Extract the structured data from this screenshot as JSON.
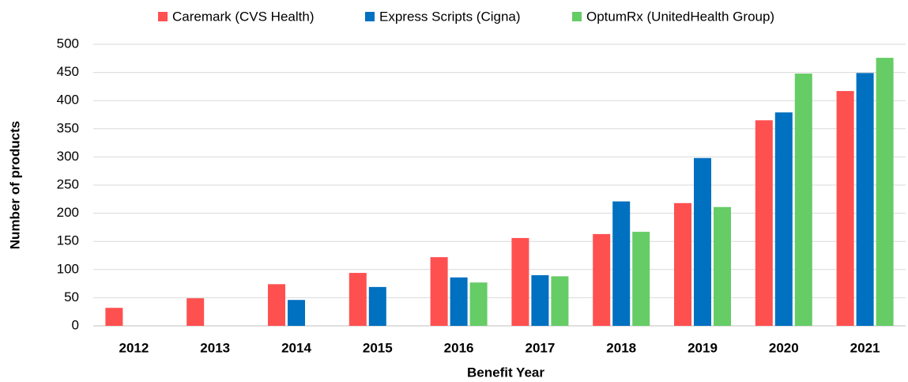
{
  "chart_data": {
    "type": "bar",
    "categories": [
      "2012",
      "2013",
      "2014",
      "2015",
      "2016",
      "2017",
      "2018",
      "2019",
      "2020",
      "2021"
    ],
    "series": [
      {
        "name": "Caremark (CVS Health)",
        "color": "#ff5050",
        "values": [
          32,
          49,
          74,
          94,
          122,
          156,
          163,
          218,
          365,
          417
        ]
      },
      {
        "name": "Express Scripts (Cigna)",
        "color": "#0070c0",
        "values": [
          null,
          null,
          46,
          69,
          86,
          90,
          221,
          298,
          379,
          449
        ]
      },
      {
        "name": "OptumRx (UnitedHealth Group)",
        "color": "#66cc66",
        "values": [
          null,
          null,
          null,
          null,
          77,
          88,
          167,
          211,
          448,
          476
        ]
      }
    ],
    "x_label": "Benefit Year",
    "y_label": "Number of products",
    "ylim": [
      0,
      500
    ],
    "yticks": [
      0,
      50,
      100,
      150,
      200,
      250,
      300,
      350,
      400,
      450,
      500
    ],
    "grid": true
  }
}
